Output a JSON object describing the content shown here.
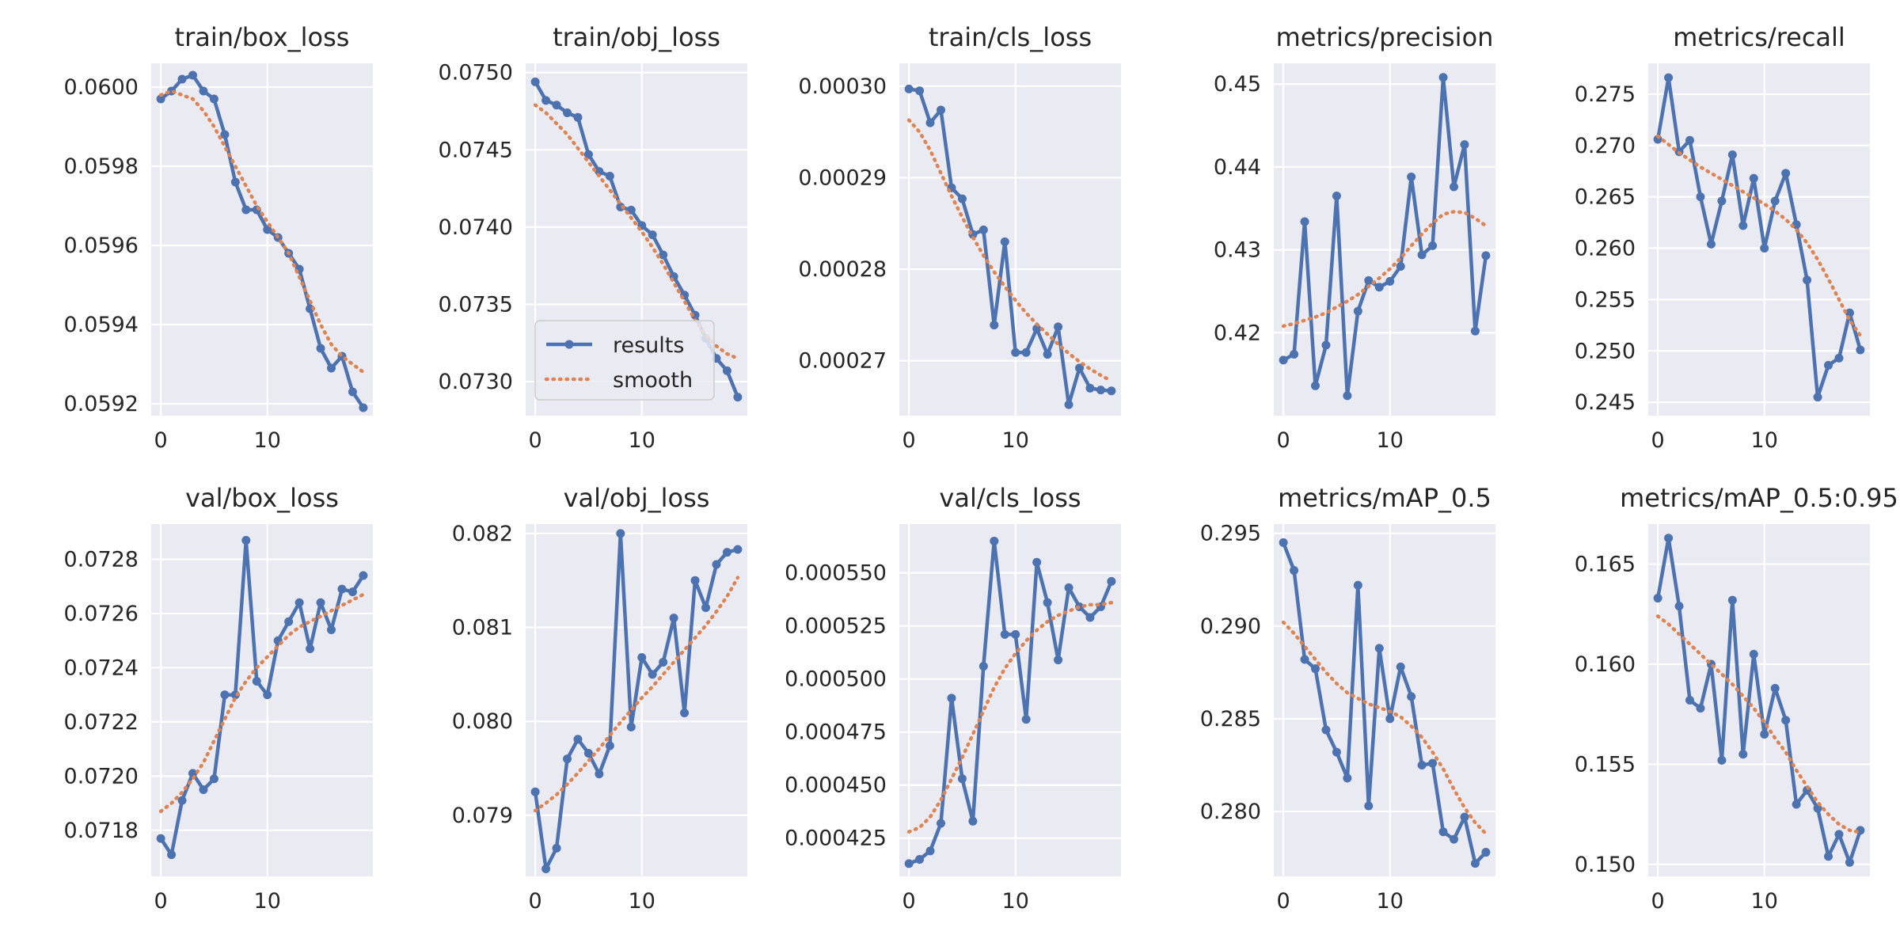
{
  "colors": {
    "results": "#4c72b0",
    "smooth": "#dd8452",
    "panel": "#eaeaf2",
    "grid": "#ffffff"
  },
  "legend": {
    "results": "results",
    "smooth": "smooth",
    "panel": 1,
    "location": "lower left"
  },
  "chart_data": [
    {
      "type": "line",
      "title": "train/box_loss",
      "x": [
        0,
        1,
        2,
        3,
        4,
        5,
        6,
        7,
        8,
        9,
        10,
        11,
        12,
        13,
        14,
        15,
        16,
        17,
        18,
        19
      ],
      "ylim": [
        0.05917,
        0.06006
      ],
      "yticks": [
        0.0592,
        0.0594,
        0.0596,
        0.0598,
        0.06
      ],
      "ytick_labels": [
        "0.0592",
        "0.0594",
        "0.0596",
        "0.0598",
        "0.0600"
      ],
      "xticks": [
        0,
        10
      ],
      "xtick_labels": [
        "0",
        "10"
      ],
      "series": [
        {
          "name": "results",
          "values": [
            0.05997,
            0.05999,
            0.06002,
            0.06003,
            0.05999,
            0.05997,
            0.05988,
            0.05976,
            0.05969,
            0.05969,
            0.05964,
            0.05962,
            0.05958,
            0.05954,
            0.05944,
            0.05934,
            0.05929,
            0.05932,
            0.05923,
            0.05919
          ]
        },
        {
          "name": "smooth",
          "values": [
            0.05998,
            0.05999,
            0.05998,
            0.05997,
            0.05994,
            0.0599,
            0.05985,
            0.0598,
            0.05975,
            0.0597,
            0.05966,
            0.05962,
            0.05958,
            0.05952,
            0.05946,
            0.0594,
            0.05935,
            0.05932,
            0.0593,
            0.05928
          ]
        }
      ]
    },
    {
      "type": "line",
      "title": "train/obj_loss",
      "x": [
        0,
        1,
        2,
        3,
        4,
        5,
        6,
        7,
        8,
        9,
        10,
        11,
        12,
        13,
        14,
        15,
        16,
        17,
        18,
        19
      ],
      "ylim": [
        0.07278,
        0.07506
      ],
      "yticks": [
        0.073,
        0.0735,
        0.074,
        0.0745,
        0.075
      ],
      "ytick_labels": [
        "0.0730",
        "0.0735",
        "0.0740",
        "0.0745",
        "0.0750"
      ],
      "xticks": [
        0,
        10
      ],
      "xtick_labels": [
        "0",
        "10"
      ],
      "series": [
        {
          "name": "results",
          "values": [
            0.07494,
            0.07482,
            0.07479,
            0.07474,
            0.07471,
            0.07447,
            0.07436,
            0.07433,
            0.07413,
            0.07411,
            0.07401,
            0.07395,
            0.07382,
            0.07368,
            0.07356,
            0.07343,
            0.07328,
            0.07315,
            0.07307,
            0.0729
          ]
        },
        {
          "name": "smooth",
          "values": [
            0.07479,
            0.07474,
            0.07467,
            0.0746,
            0.07451,
            0.07442,
            0.07433,
            0.07424,
            0.07415,
            0.07406,
            0.07397,
            0.07387,
            0.07376,
            0.07364,
            0.07352,
            0.0734,
            0.0733,
            0.07323,
            0.07318,
            0.07315
          ]
        }
      ]
    },
    {
      "type": "line",
      "title": "train/cls_loss",
      "x": [
        0,
        1,
        2,
        3,
        4,
        5,
        6,
        7,
        8,
        9,
        10,
        11,
        12,
        13,
        14,
        15,
        16,
        17,
        18,
        19
      ],
      "ylim": [
        0.000264,
        0.0003025
      ],
      "yticks": [
        0.00027,
        0.00028,
        0.00029,
        0.0003
      ],
      "ytick_labels": [
        "0.00027",
        "0.00028",
        "0.00029",
        "0.00030"
      ],
      "xticks": [
        0,
        10
      ],
      "xtick_labels": [
        "0",
        "10"
      ],
      "series": [
        {
          "name": "results",
          "values": [
            0.0002997,
            0.0002995,
            0.000296,
            0.0002974,
            0.0002889,
            0.0002877,
            0.0002838,
            0.0002843,
            0.0002739,
            0.000283,
            0.0002709,
            0.0002709,
            0.0002735,
            0.0002707,
            0.0002737,
            0.0002652,
            0.0002692,
            0.000267,
            0.0002668,
            0.0002667
          ]
        },
        {
          "name": "smooth",
          "values": [
            0.0002963,
            0.000295,
            0.000293,
            0.0002905,
            0.000288,
            0.0002857,
            0.0002835,
            0.0002815,
            0.0002797,
            0.0002781,
            0.0002766,
            0.0002752,
            0.000274,
            0.0002729,
            0.0002718,
            0.0002708,
            0.0002699,
            0.0002691,
            0.0002684,
            0.0002678
          ]
        }
      ]
    },
    {
      "type": "line",
      "title": "metrics/precision",
      "x": [
        0,
        1,
        2,
        3,
        4,
        5,
        6,
        7,
        8,
        9,
        10,
        11,
        12,
        13,
        14,
        15,
        16,
        17,
        18,
        19
      ],
      "ylim": [
        0.41,
        0.4525
      ],
      "yticks": [
        0.42,
        0.43,
        0.44,
        0.45
      ],
      "ytick_labels": [
        "0.42",
        "0.43",
        "0.44",
        "0.45"
      ],
      "xticks": [
        0,
        10
      ],
      "xtick_labels": [
        "0",
        "10"
      ],
      "series": [
        {
          "name": "results",
          "values": [
            0.4167,
            0.4174,
            0.4334,
            0.4136,
            0.4185,
            0.4365,
            0.4124,
            0.4226,
            0.4263,
            0.4255,
            0.4262,
            0.428,
            0.4388,
            0.4294,
            0.4305,
            0.4508,
            0.4376,
            0.4427,
            0.4202,
            0.4293
          ]
        },
        {
          "name": "smooth",
          "values": [
            0.4208,
            0.4211,
            0.4215,
            0.4219,
            0.4224,
            0.4231,
            0.4238,
            0.4246,
            0.4256,
            0.4266,
            0.4277,
            0.429,
            0.4305,
            0.4319,
            0.4332,
            0.4343,
            0.4346,
            0.4345,
            0.4338,
            0.4329
          ]
        }
      ]
    },
    {
      "type": "line",
      "title": "metrics/recall",
      "x": [
        0,
        1,
        2,
        3,
        4,
        5,
        6,
        7,
        8,
        9,
        10,
        11,
        12,
        13,
        14,
        15,
        16,
        17,
        18,
        19
      ],
      "ylim": [
        0.2437,
        0.278
      ],
      "yticks": [
        0.245,
        0.25,
        0.255,
        0.26,
        0.265,
        0.27,
        0.275
      ],
      "ytick_labels": [
        "0.245",
        "0.250",
        "0.255",
        "0.260",
        "0.265",
        "0.270",
        "0.275"
      ],
      "xticks": [
        0,
        10
      ],
      "xtick_labels": [
        "0",
        "10"
      ],
      "series": [
        {
          "name": "results",
          "values": [
            0.2706,
            0.2766,
            0.2694,
            0.2705,
            0.265,
            0.2604,
            0.2646,
            0.2691,
            0.2622,
            0.2668,
            0.26,
            0.2646,
            0.2673,
            0.2623,
            0.2569,
            0.2455,
            0.2486,
            0.2493,
            0.2537,
            0.2501
          ]
        },
        {
          "name": "smooth",
          "values": [
            0.2709,
            0.2701,
            0.2693,
            0.2686,
            0.2679,
            0.2673,
            0.2667,
            0.2661,
            0.2655,
            0.2649,
            0.2643,
            0.2636,
            0.2628,
            0.2618,
            0.2605,
            0.2589,
            0.257,
            0.255,
            0.253,
            0.2515
          ]
        }
      ]
    },
    {
      "type": "line",
      "title": "val/box_loss",
      "x": [
        0,
        1,
        2,
        3,
        4,
        5,
        6,
        7,
        8,
        9,
        10,
        11,
        12,
        13,
        14,
        15,
        16,
        17,
        18,
        19
      ],
      "ylim": [
        0.07163,
        0.07293
      ],
      "yticks": [
        0.0718,
        0.072,
        0.0722,
        0.0724,
        0.0726,
        0.0728
      ],
      "ytick_labels": [
        "0.0718",
        "0.0720",
        "0.0722",
        "0.0724",
        "0.0726",
        "0.0728"
      ],
      "xticks": [
        0,
        10
      ],
      "xtick_labels": [
        "0",
        "10"
      ],
      "series": [
        {
          "name": "results",
          "values": [
            0.07177,
            0.07171,
            0.07191,
            0.07201,
            0.07195,
            0.07199,
            0.0723,
            0.0723,
            0.07287,
            0.07235,
            0.0723,
            0.0725,
            0.07257,
            0.07264,
            0.07247,
            0.07264,
            0.07254,
            0.07269,
            0.07268,
            0.07274
          ]
        },
        {
          "name": "smooth",
          "values": [
            0.07187,
            0.0719,
            0.07194,
            0.07199,
            0.07205,
            0.07213,
            0.07221,
            0.07229,
            0.07235,
            0.0724,
            0.07244,
            0.07248,
            0.07252,
            0.07255,
            0.07257,
            0.07259,
            0.07261,
            0.07263,
            0.07265,
            0.07267
          ]
        }
      ]
    },
    {
      "type": "line",
      "title": "val/obj_loss",
      "x": [
        0,
        1,
        2,
        3,
        4,
        5,
        6,
        7,
        8,
        9,
        10,
        11,
        12,
        13,
        14,
        15,
        16,
        17,
        18,
        19
      ],
      "ylim": [
        0.07835,
        0.0821
      ],
      "yticks": [
        0.079,
        0.08,
        0.081,
        0.082
      ],
      "ytick_labels": [
        "0.079",
        "0.080",
        "0.081",
        "0.082"
      ],
      "xticks": [
        0,
        10
      ],
      "xtick_labels": [
        "0",
        "10"
      ],
      "series": [
        {
          "name": "results",
          "values": [
            0.07925,
            0.07843,
            0.07865,
            0.0796,
            0.07981,
            0.07966,
            0.07944,
            0.07974,
            0.082,
            0.07994,
            0.08068,
            0.0805,
            0.08063,
            0.0811,
            0.08009,
            0.0815,
            0.08121,
            0.08167,
            0.0818,
            0.08183
          ]
        },
        {
          "name": "smooth",
          "values": [
            0.07905,
            0.07913,
            0.07922,
            0.07933,
            0.07945,
            0.07958,
            0.07971,
            0.07985,
            0.07999,
            0.08012,
            0.08025,
            0.08037,
            0.0805,
            0.08063,
            0.08076,
            0.08089,
            0.08102,
            0.08117,
            0.08133,
            0.08153
          ]
        }
      ]
    },
    {
      "type": "line",
      "title": "val/cls_loss",
      "x": [
        0,
        1,
        2,
        3,
        4,
        5,
        6,
        7,
        8,
        9,
        10,
        11,
        12,
        13,
        14,
        15,
        16,
        17,
        18,
        19
      ],
      "ylim": [
        0.000407,
        0.000573
      ],
      "yticks": [
        0.000425,
        0.00045,
        0.000475,
        0.0005,
        0.000525,
        0.00055
      ],
      "ytick_labels": [
        "0.000425",
        "0.000450",
        "0.000475",
        "0.000500",
        "0.000525",
        "0.000550"
      ],
      "xticks": [
        0,
        10
      ],
      "xtick_labels": [
        "0",
        "10"
      ],
      "series": [
        {
          "name": "results",
          "values": [
            0.000413,
            0.000415,
            0.000419,
            0.000432,
            0.000491,
            0.000453,
            0.000433,
            0.000506,
            0.000565,
            0.000521,
            0.000521,
            0.000481,
            0.000555,
            0.000536,
            0.000509,
            0.000543,
            0.000534,
            0.000529,
            0.000534,
            0.000546
          ]
        },
        {
          "name": "smooth",
          "values": [
            0.000428,
            0.00043,
            0.000435,
            0.000443,
            0.000453,
            0.000463,
            0.000474,
            0.000485,
            0.000496,
            0.000505,
            0.000512,
            0.000518,
            0.000523,
            0.000527,
            0.00053,
            0.000532,
            0.000534,
            0.000535,
            0.000535,
            0.000536
          ]
        }
      ]
    },
    {
      "type": "line",
      "title": "metrics/mAP_0.5",
      "x": [
        0,
        1,
        2,
        3,
        4,
        5,
        6,
        7,
        8,
        9,
        10,
        11,
        12,
        13,
        14,
        15,
        16,
        17,
        18,
        19
      ],
      "ylim": [
        0.2765,
        0.2955
      ],
      "yticks": [
        0.28,
        0.285,
        0.29,
        0.295
      ],
      "ytick_labels": [
        "0.280",
        "0.285",
        "0.290",
        "0.295"
      ],
      "xticks": [
        0,
        10
      ],
      "xtick_labels": [
        "0",
        "10"
      ],
      "series": [
        {
          "name": "results",
          "values": [
            0.2945,
            0.293,
            0.2882,
            0.2877,
            0.2844,
            0.2832,
            0.2818,
            0.2922,
            0.2803,
            0.2888,
            0.285,
            0.2878,
            0.2862,
            0.2825,
            0.2826,
            0.2789,
            0.2785,
            0.2797,
            0.2772,
            0.2778
          ]
        },
        {
          "name": "smooth",
          "values": [
            0.2902,
            0.2896,
            0.2889,
            0.2882,
            0.2875,
            0.2869,
            0.2864,
            0.2861,
            0.2858,
            0.2856,
            0.2854,
            0.2851,
            0.2846,
            0.284,
            0.2832,
            0.2823,
            0.2812,
            0.2802,
            0.2794,
            0.2788
          ]
        }
      ]
    },
    {
      "type": "line",
      "title": "metrics/mAP_0.5:0.95",
      "x": [
        0,
        1,
        2,
        3,
        4,
        5,
        6,
        7,
        8,
        9,
        10,
        11,
        12,
        13,
        14,
        15,
        16,
        17,
        18,
        19
      ],
      "ylim": [
        0.1494,
        0.167
      ],
      "yticks": [
        0.15,
        0.155,
        0.16,
        0.165
      ],
      "ytick_labels": [
        "0.150",
        "0.155",
        "0.160",
        "0.165"
      ],
      "xticks": [
        0,
        10
      ],
      "xtick_labels": [
        "0",
        "10"
      ],
      "series": [
        {
          "name": "results",
          "values": [
            0.1633,
            0.1663,
            0.1629,
            0.1582,
            0.1578,
            0.16,
            0.1552,
            0.1632,
            0.1555,
            0.1605,
            0.1565,
            0.1588,
            0.1572,
            0.153,
            0.1537,
            0.1528,
            0.1504,
            0.1515,
            0.1501,
            0.1517
          ]
        },
        {
          "name": "smooth",
          "values": [
            0.1624,
            0.162,
            0.1615,
            0.161,
            0.1605,
            0.16,
            0.1595,
            0.159,
            0.1584,
            0.1578,
            0.1571,
            0.1563,
            0.1556,
            0.1547,
            0.1539,
            0.1531,
            0.1525,
            0.152,
            0.1517,
            0.1516
          ]
        }
      ]
    }
  ]
}
